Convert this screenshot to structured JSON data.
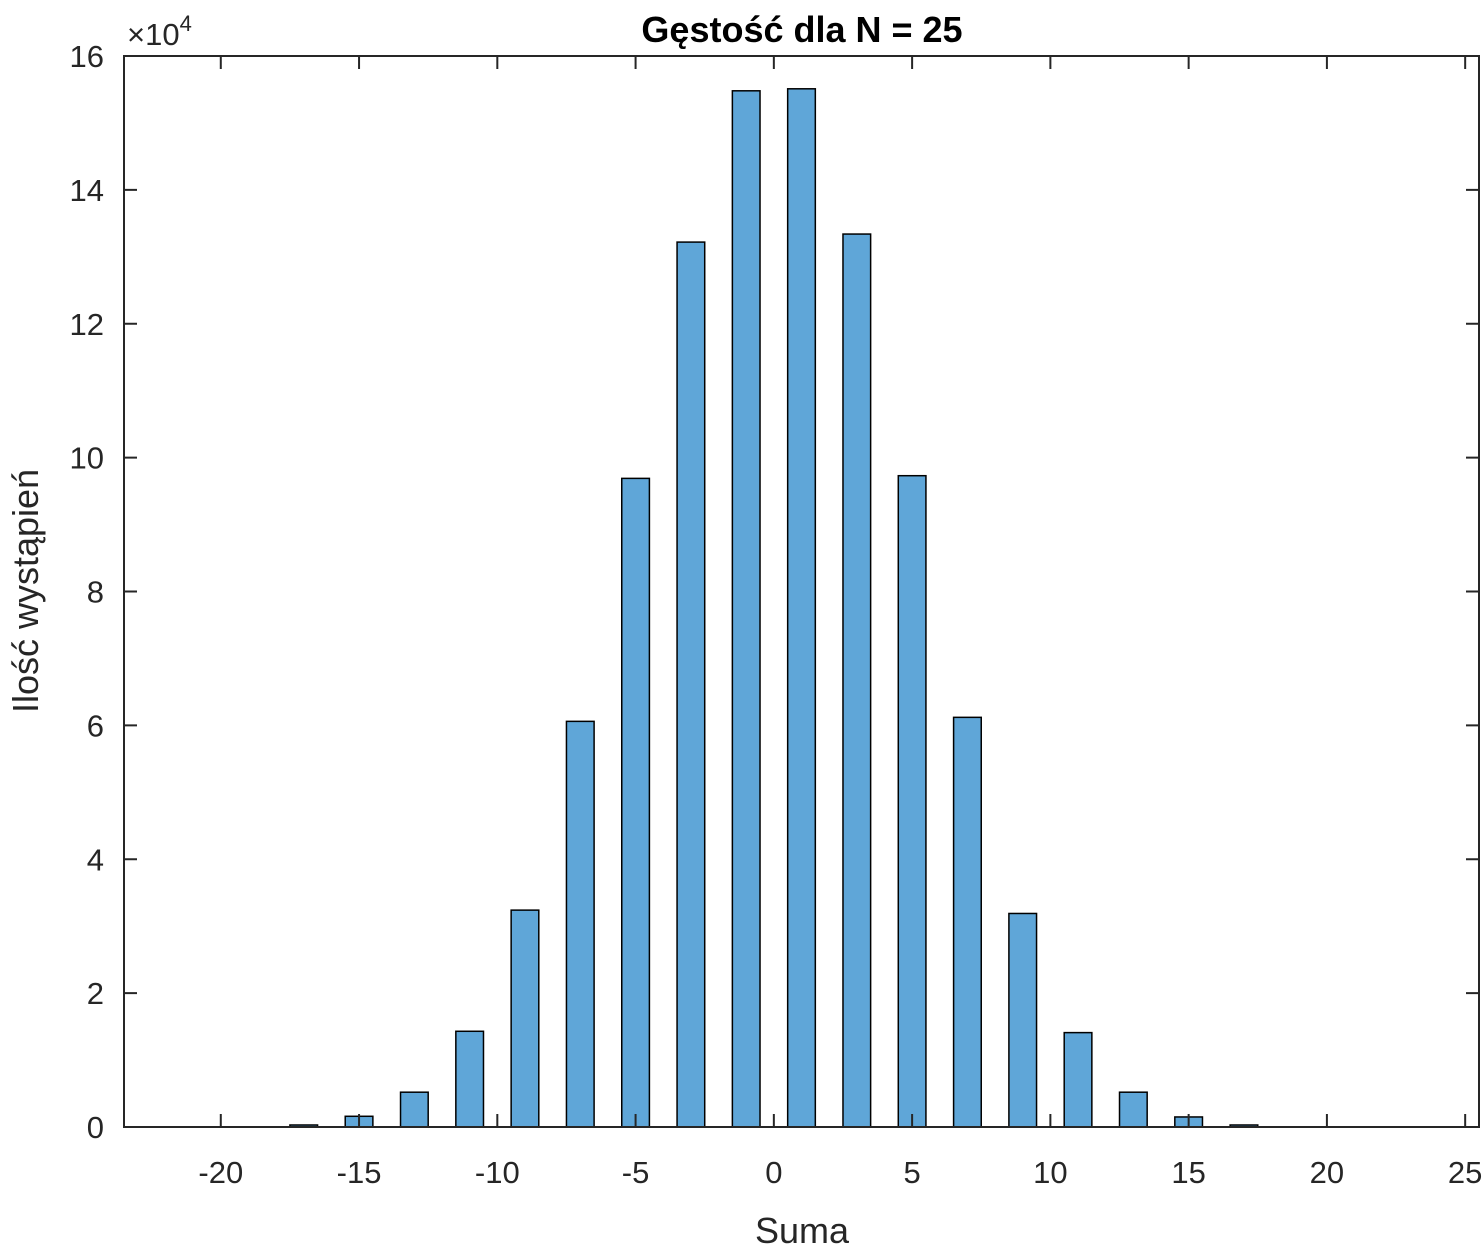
{
  "chart_data": {
    "type": "bar",
    "title": "Gęstość dla N = 25",
    "xlabel": "Suma",
    "ylabel": "Ilość wystąpień",
    "y_exponent_label": "×10",
    "y_exponent_power": "4",
    "y_multiplier": 10000,
    "xlim": [
      -23.5,
      25.5
    ],
    "ylim": [
      0,
      16
    ],
    "x_ticks": [
      -20,
      -15,
      -10,
      -5,
      0,
      5,
      10,
      15,
      20,
      25
    ],
    "x_tick_labels": [
      "-20",
      "-15",
      "-10",
      "-5",
      "0",
      "5",
      "10",
      "15",
      "20",
      "25"
    ],
    "y_ticks": [
      0,
      2,
      4,
      6,
      8,
      10,
      12,
      14,
      16
    ],
    "y_tick_labels": [
      "0",
      "2",
      "4",
      "6",
      "8",
      "10",
      "12",
      "14",
      "16"
    ],
    "bar_width": 1,
    "x": [
      -21,
      -19,
      -17,
      -15,
      -13,
      -11,
      -9,
      -7,
      -5,
      -3,
      -1,
      1,
      3,
      5,
      7,
      9,
      11,
      13,
      15,
      17,
      19,
      21,
      23
    ],
    "values": [
      0.0,
      0.0,
      0.03,
      0.16,
      0.52,
      1.43,
      3.24,
      6.06,
      9.69,
      13.22,
      15.48,
      15.51,
      13.34,
      9.73,
      6.12,
      3.19,
      1.41,
      0.52,
      0.15,
      0.03,
      0.0,
      0.0,
      0.0
    ],
    "grid": false,
    "box": true,
    "colors": {
      "bar_fill": "#5fa6d8",
      "bar_edge": "#000000",
      "axes": "#262626"
    }
  }
}
